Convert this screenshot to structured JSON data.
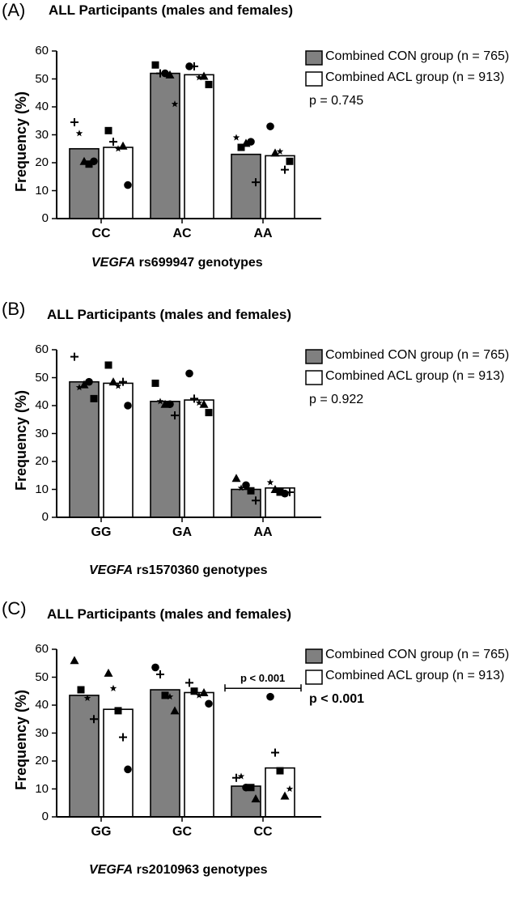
{
  "chart_data": [
    {
      "type": "bar",
      "panel_letter": "(A)",
      "title": "ALL Participants (males and females)",
      "xlabel_gene": "VEGFA",
      "xlabel_rest": " rs699947 genotypes",
      "ylabel": "Frequency (%)",
      "ylim": [
        0,
        60
      ],
      "yticks": [
        0,
        10,
        20,
        30,
        40,
        50,
        60
      ],
      "categories": [
        "CC",
        "AC",
        "AA"
      ],
      "series": [
        {
          "name": "Combined CON group (n = 765)",
          "color": "#808080",
          "values": [
            25,
            52,
            23
          ],
          "points": [
            [
              {
                "m": "plus",
                "v": 34.5
              },
              {
                "m": "star",
                "v": 30.5
              },
              {
                "m": "tri",
                "v": 20.5
              },
              {
                "m": "sq",
                "v": 19.5
              },
              {
                "m": "dot",
                "v": 20.5
              }
            ],
            [
              {
                "m": "sq",
                "v": 55
              },
              {
                "m": "plus",
                "v": 52
              },
              {
                "m": "dot",
                "v": 52
              },
              {
                "m": "tri",
                "v": 51.5
              },
              {
                "m": "star",
                "v": 41
              }
            ],
            [
              {
                "m": "star",
                "v": 29
              },
              {
                "m": "sq",
                "v": 25.5
              },
              {
                "m": "tri",
                "v": 27
              },
              {
                "m": "dot",
                "v": 27.5
              },
              {
                "m": "plus",
                "v": 13
              }
            ]
          ]
        },
        {
          "name": "Combined ACL group (n = 913)",
          "color": "#ffffff",
          "values": [
            25.5,
            51.5,
            22.5
          ],
          "points": [
            [
              {
                "m": "sq",
                "v": 31.5
              },
              {
                "m": "plus",
                "v": 27.5
              },
              {
                "m": "star",
                "v": 25
              },
              {
                "m": "tri",
                "v": 26
              },
              {
                "m": "dot",
                "v": 12
              }
            ],
            [
              {
                "m": "dot",
                "v": 54.5
              },
              {
                "m": "plus",
                "v": 54.5
              },
              {
                "m": "star",
                "v": 50.5
              },
              {
                "m": "tri",
                "v": 51
              },
              {
                "m": "sq",
                "v": 48
              }
            ],
            [
              {
                "m": "dot",
                "v": 33
              },
              {
                "m": "tri",
                "v": 23.5
              },
              {
                "m": "star",
                "v": 24
              },
              {
                "m": "plus",
                "v": 17.5
              },
              {
                "m": "sq",
                "v": 20.5
              }
            ]
          ]
        }
      ],
      "pvalue": "p = 0.745",
      "pvalue_bold": false,
      "bracket": null
    },
    {
      "type": "bar",
      "panel_letter": "(B)",
      "title": "ALL Participants (males and females)",
      "xlabel_gene": "VEGFA",
      "xlabel_rest": " rs1570360 genotypes",
      "ylabel": "Frequency (%)",
      "ylim": [
        0,
        60
      ],
      "yticks": [
        0,
        10,
        20,
        30,
        40,
        50,
        60
      ],
      "categories": [
        "GG",
        "GA",
        "AA"
      ],
      "series": [
        {
          "name": "Combined CON group (n = 765)",
          "color": "#808080",
          "values": [
            48.5,
            41.5,
            10
          ],
          "points": [
            [
              {
                "m": "plus",
                "v": 57.5
              },
              {
                "m": "star",
                "v": 46.5
              },
              {
                "m": "tri",
                "v": 47.5
              },
              {
                "m": "dot",
                "v": 48.5
              },
              {
                "m": "sq",
                "v": 42.5
              }
            ],
            [
              {
                "m": "sq",
                "v": 48
              },
              {
                "m": "star",
                "v": 41.5
              },
              {
                "m": "tri",
                "v": 40.5
              },
              {
                "m": "dot",
                "v": 40.5
              },
              {
                "m": "plus",
                "v": 36.5
              }
            ],
            [
              {
                "m": "tri",
                "v": 14
              },
              {
                "m": "star",
                "v": 10.5
              },
              {
                "m": "dot",
                "v": 11.5
              },
              {
                "m": "sq",
                "v": 9.5
              },
              {
                "m": "plus",
                "v": 6
              }
            ]
          ]
        },
        {
          "name": "Combined ACL group (n = 913)",
          "color": "#ffffff",
          "values": [
            48,
            42,
            10.5
          ],
          "points": [
            [
              {
                "m": "sq",
                "v": 54.5
              },
              {
                "m": "tri",
                "v": 48.5
              },
              {
                "m": "star",
                "v": 47
              },
              {
                "m": "plus",
                "v": 48.5
              },
              {
                "m": "dot",
                "v": 40
              }
            ],
            [
              {
                "m": "dot",
                "v": 51.5
              },
              {
                "m": "plus",
                "v": 42.5
              },
              {
                "m": "star",
                "v": 41
              },
              {
                "m": "tri",
                "v": 40.5
              },
              {
                "m": "sq",
                "v": 37.5
              }
            ],
            [
              {
                "m": "star",
                "v": 12.5
              },
              {
                "m": "tri",
                "v": 10
              },
              {
                "m": "sq",
                "v": 9
              },
              {
                "m": "dot",
                "v": 8.5
              },
              {
                "m": "plus",
                "v": 9
              }
            ]
          ]
        }
      ],
      "pvalue": "p = 0.922",
      "pvalue_bold": false,
      "bracket": null
    },
    {
      "type": "bar",
      "panel_letter": "(C)",
      "title": "ALL Participants (males and females)",
      "xlabel_gene": "VEGFA",
      "xlabel_rest": " rs2010963 genotypes",
      "ylabel": "Frequency (%)",
      "ylim": [
        0,
        60
      ],
      "yticks": [
        0,
        10,
        20,
        30,
        40,
        50,
        60
      ],
      "categories": [
        "GG",
        "GC",
        "CC"
      ],
      "series": [
        {
          "name": "Combined CON group (n = 765)",
          "color": "#808080",
          "values": [
            43.5,
            45.5,
            11
          ],
          "points": [
            [
              {
                "m": "tri",
                "v": 56
              },
              {
                "m": "sq",
                "v": 45.5
              },
              {
                "m": "star",
                "v": 42.5
              },
              {
                "m": "plus",
                "v": 35
              }
            ],
            [
              {
                "m": "dot",
                "v": 53.5
              },
              {
                "m": "plus",
                "v": 51
              },
              {
                "m": "sq",
                "v": 43.5
              },
              {
                "m": "star",
                "v": 43
              },
              {
                "m": "tri",
                "v": 38
              }
            ],
            [
              {
                "m": "plus",
                "v": 14
              },
              {
                "m": "star",
                "v": 14.5
              },
              {
                "m": "dot",
                "v": 10.5
              },
              {
                "m": "sq",
                "v": 10.5
              },
              {
                "m": "tri",
                "v": 6.5
              }
            ]
          ]
        },
        {
          "name": "Combined ACL group (n = 913)",
          "color": "#ffffff",
          "values": [
            38.5,
            44.5,
            17.5
          ],
          "points": [
            [
              {
                "m": "tri",
                "v": 51.5
              },
              {
                "m": "star",
                "v": 46
              },
              {
                "m": "sq",
                "v": 38
              },
              {
                "m": "plus",
                "v": 28.5
              },
              {
                "m": "dot",
                "v": 17
              }
            ],
            [
              {
                "m": "plus",
                "v": 48
              },
              {
                "m": "sq",
                "v": 45
              },
              {
                "m": "star",
                "v": 43.5
              },
              {
                "m": "tri",
                "v": 44.5
              },
              {
                "m": "dot",
                "v": 40.5
              }
            ],
            [
              {
                "m": "dot",
                "v": 43
              },
              {
                "m": "plus",
                "v": 23
              },
              {
                "m": "sq",
                "v": 16.5
              },
              {
                "m": "tri",
                "v": 7.5
              },
              {
                "m": "star",
                "v": 10
              }
            ]
          ]
        }
      ],
      "pvalue": "p < 0.001",
      "pvalue_bold": true,
      "bracket": {
        "label": "p < 0.001",
        "category": 2,
        "value": 46
      }
    }
  ]
}
